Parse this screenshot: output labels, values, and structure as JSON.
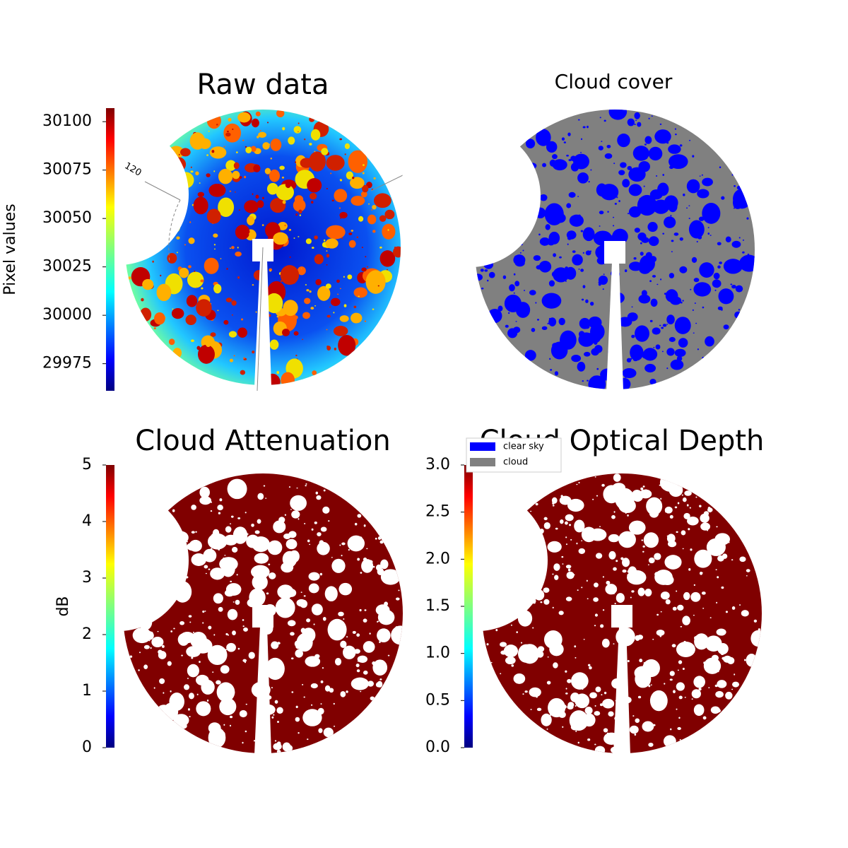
{
  "chart_data": [
    {
      "type": "image",
      "title": "Raw data",
      "colormap": "jet",
      "ylabel": "Pixel values",
      "ylim": [
        29961,
        30107
      ],
      "yticks": [
        29975,
        30000,
        30025,
        30050,
        30075,
        30100
      ],
      "annotations": [
        "120"
      ]
    },
    {
      "type": "image",
      "title": "Cloud cover",
      "series": [
        {
          "name": "clear sky",
          "color": "#0000ff"
        },
        {
          "name": "cloud",
          "color": "#808080"
        }
      ]
    },
    {
      "type": "image",
      "title": "Cloud Attenuation",
      "colormap": "jet",
      "ylabel": "dB",
      "ylim": [
        0,
        5
      ],
      "yticks": [
        0,
        1,
        2,
        3,
        4,
        5
      ]
    },
    {
      "type": "image",
      "title": "Cloud Optical Depth",
      "colormap": "jet",
      "ylim": [
        0,
        3
      ],
      "yticks": [
        {
          "value": 0,
          "label": "0.0"
        },
        {
          "value": 0.5,
          "label": "0.5"
        },
        {
          "value": 1,
          "label": "1.0"
        },
        {
          "value": 1.5,
          "label": "1.5"
        },
        {
          "value": 2,
          "label": "2.0"
        },
        {
          "value": 2.5,
          "label": "2.5"
        },
        {
          "value": 3,
          "label": "3.0"
        }
      ]
    }
  ]
}
